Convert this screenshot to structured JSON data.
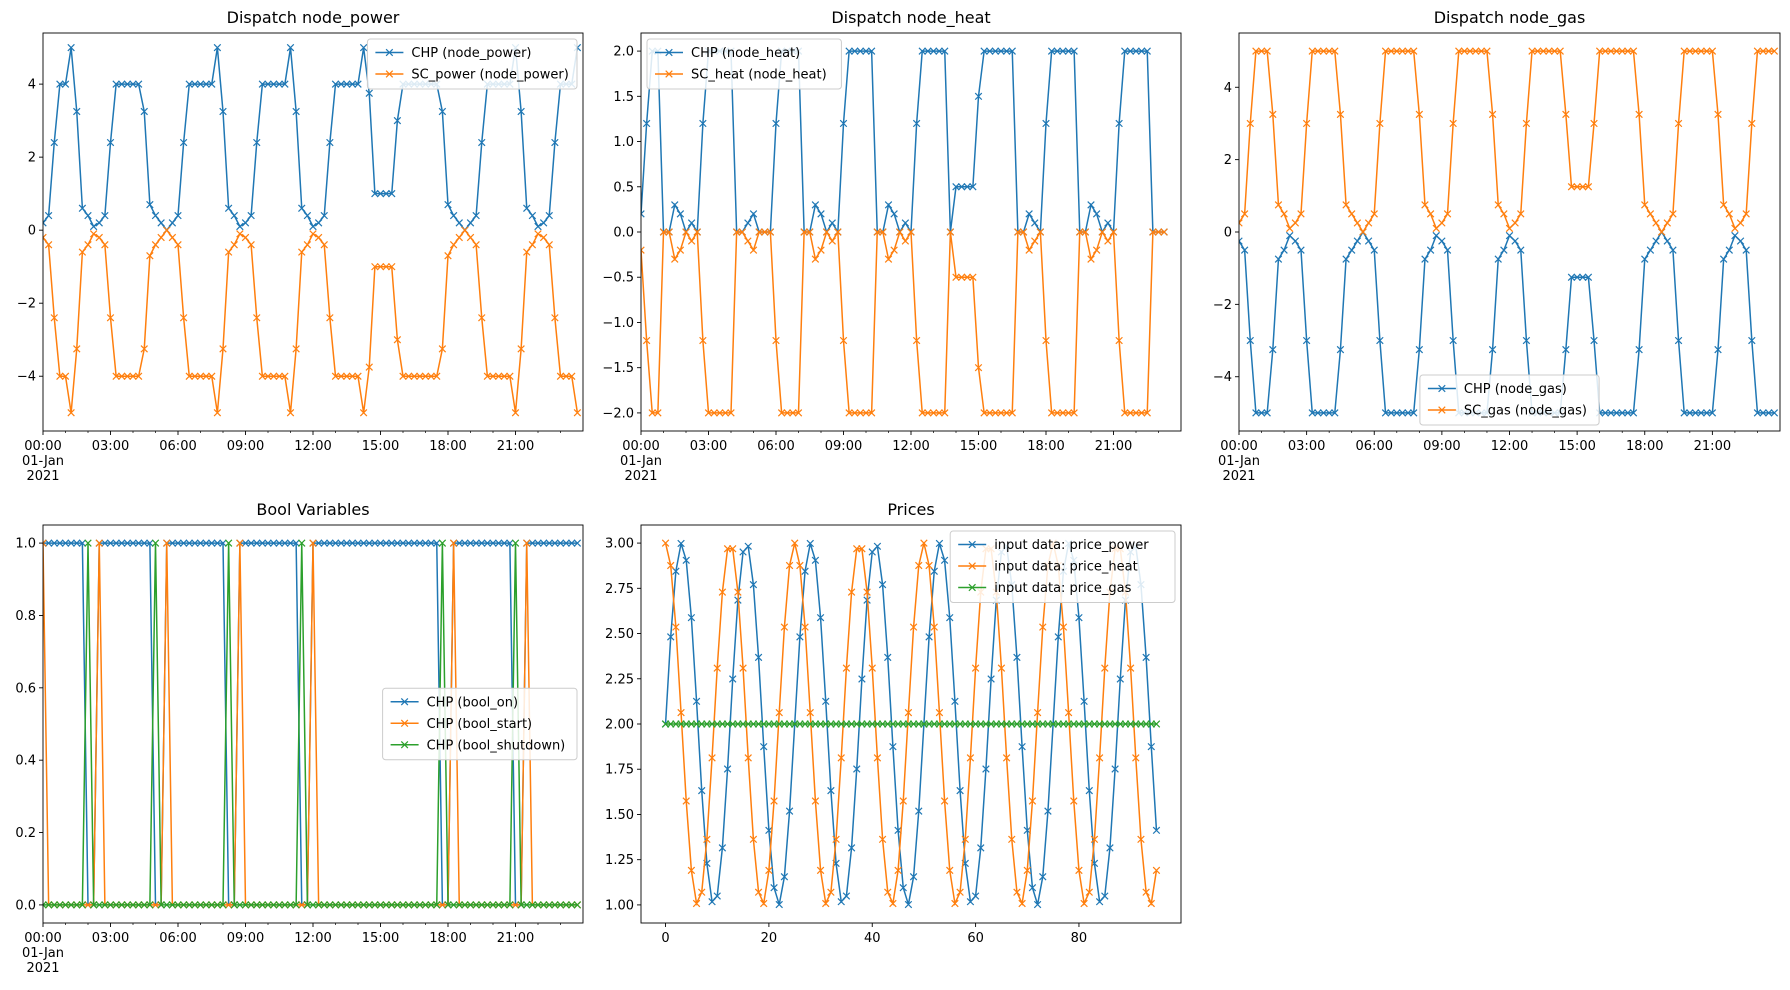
{
  "colors": {
    "c0": "#1f77b4",
    "c1": "#ff7f0e",
    "c2": "#2ca02c"
  },
  "chart_data": [
    {
      "id": "power",
      "type": "line",
      "title": "Dispatch node_power",
      "xlabel": "",
      "ylabel": "",
      "x_kind": "time",
      "n": 96,
      "xlim": [
        0,
        96
      ],
      "ylim": [
        -5.5,
        5.4
      ],
      "yticks": [
        -4,
        -2,
        0,
        2,
        4
      ],
      "yticklabels": [
        "−4",
        "−2",
        "0",
        "2",
        "4"
      ],
      "xticks": [
        0,
        12,
        24,
        36,
        48,
        60,
        72,
        84
      ],
      "xticklabels": [
        "00:00",
        "03:00",
        "06:00",
        "09:00",
        "12:00",
        "15:00",
        "18:00",
        "21:00"
      ],
      "date_line1": "01-Jan",
      "date_line2": "2021",
      "legend_loc": "upper right",
      "series": [
        {
          "name": "CHP (node_power)",
          "color": "c0",
          "values": [
            0.2,
            0.4,
            2.4,
            4,
            4,
            5,
            3.25,
            0.6,
            0.4,
            0.1,
            0.2,
            0.4,
            2.4,
            4,
            4,
            4,
            4,
            4,
            3.25,
            0.7,
            0.4,
            0.2,
            0,
            0.2,
            0.4,
            2.4,
            4,
            4,
            4,
            4,
            4,
            5,
            3.25,
            0.6,
            0.4,
            0.1,
            0.2,
            0.4,
            2.4,
            4,
            4,
            4,
            4,
            4,
            5,
            3.25,
            0.6,
            0.4,
            0.1,
            0.2,
            0.4,
            2.4,
            4,
            4,
            4,
            4,
            4,
            5,
            3.75,
            1,
            1,
            1,
            1,
            3,
            4,
            4,
            4,
            4,
            4,
            4,
            4,
            3.25,
            0.7,
            0.4,
            0.2,
            0,
            0.2,
            0.4,
            2.4,
            4,
            4,
            4,
            4,
            4,
            5,
            3.25,
            0.6,
            0.4,
            0.1,
            0.2,
            0.4,
            2.4,
            4,
            4,
            4,
            5
          ]
        },
        {
          "name": "SC_power (node_power)",
          "color": "c1",
          "values": [
            -0.2,
            -0.4,
            -2.4,
            -4,
            -4,
            -5,
            -3.25,
            -0.6,
            -0.4,
            -0.1,
            -0.2,
            -0.4,
            -2.4,
            -4,
            -4,
            -4,
            -4,
            -4,
            -3.25,
            -0.7,
            -0.4,
            -0.2,
            0,
            -0.2,
            -0.4,
            -2.4,
            -4,
            -4,
            -4,
            -4,
            -4,
            -5,
            -3.25,
            -0.6,
            -0.4,
            -0.1,
            -0.2,
            -0.4,
            -2.4,
            -4,
            -4,
            -4,
            -4,
            -4,
            -5,
            -3.25,
            -0.6,
            -0.4,
            -0.1,
            -0.2,
            -0.4,
            -2.4,
            -4,
            -4,
            -4,
            -4,
            -4,
            -5,
            -3.75,
            -1,
            -1,
            -1,
            -1,
            -3,
            -4,
            -4,
            -4,
            -4,
            -4,
            -4,
            -4,
            -3.25,
            -0.7,
            -0.4,
            -0.2,
            0,
            -0.2,
            -0.4,
            -2.4,
            -4,
            -4,
            -4,
            -4,
            -4,
            -5,
            -3.25,
            -0.6,
            -0.4,
            -0.1,
            -0.2,
            -0.4,
            -2.4,
            -4,
            -4,
            -4,
            -5
          ]
        }
      ]
    },
    {
      "id": "heat",
      "type": "line",
      "title": "Dispatch node_heat",
      "xlabel": "",
      "ylabel": "",
      "x_kind": "time",
      "n": 96,
      "xlim": [
        0,
        96
      ],
      "ylim": [
        -2.2,
        2.2
      ],
      "yticks": [
        -2.0,
        -1.5,
        -1.0,
        -0.5,
        0.0,
        0.5,
        1.0,
        1.5,
        2.0
      ],
      "yticklabels": [
        "−2.0",
        "−1.5",
        "−1.0",
        "−0.5",
        "0.0",
        "0.5",
        "1.0",
        "1.5",
        "2.0"
      ],
      "xticks": [
        0,
        12,
        24,
        36,
        48,
        60,
        72,
        84
      ],
      "xticklabels": [
        "00:00",
        "03:00",
        "06:00",
        "09:00",
        "12:00",
        "15:00",
        "18:00",
        "21:00"
      ],
      "date_line1": "01-Jan",
      "date_line2": "2021",
      "legend_loc": "upper left",
      "series": [
        {
          "name": "CHP (node_heat)",
          "color": "c0",
          "values": [
            0.2,
            1.2,
            2,
            2,
            0,
            0,
            0.3,
            0.2,
            0,
            0.1,
            0,
            1.2,
            2,
            2,
            2,
            2,
            2,
            0,
            0,
            0.1,
            0.2,
            0,
            0,
            0,
            1.2,
            2,
            2,
            2,
            2,
            0,
            0,
            0.3,
            0.2,
            0,
            0.1,
            0,
            1.2,
            2,
            2,
            2,
            2,
            2,
            0,
            0,
            0.3,
            0.2,
            0,
            0.1,
            0,
            1.2,
            2,
            2,
            2,
            2,
            2,
            0,
            0.5,
            0.5,
            0.5,
            0.5,
            1.5,
            2,
            2,
            2,
            2,
            2,
            2,
            0,
            0,
            0.2,
            0.1,
            0,
            1.2,
            2,
            2,
            2,
            2,
            2,
            0,
            0,
            0.3,
            0.2,
            0,
            0.1,
            0,
            1.2,
            2,
            2,
            2,
            2,
            2,
            0,
            0,
            0
          ]
        },
        {
          "name": "SC_heat (node_heat)",
          "color": "c1",
          "values": [
            -0.2,
            -1.2,
            -2,
            -2,
            0,
            0,
            -0.3,
            -0.2,
            0,
            -0.1,
            0,
            -1.2,
            -2,
            -2,
            -2,
            -2,
            -2,
            0,
            0,
            -0.1,
            -0.2,
            0,
            0,
            0,
            -1.2,
            -2,
            -2,
            -2,
            -2,
            0,
            0,
            -0.3,
            -0.2,
            0,
            -0.1,
            0,
            -1.2,
            -2,
            -2,
            -2,
            -2,
            -2,
            0,
            0,
            -0.3,
            -0.2,
            0,
            -0.1,
            0,
            -1.2,
            -2,
            -2,
            -2,
            -2,
            -2,
            0,
            -0.5,
            -0.5,
            -0.5,
            -0.5,
            -1.5,
            -2,
            -2,
            -2,
            -2,
            -2,
            -2,
            0,
            0,
            -0.2,
            -0.1,
            0,
            -1.2,
            -2,
            -2,
            -2,
            -2,
            -2,
            0,
            0,
            -0.3,
            -0.2,
            0,
            -0.1,
            0,
            -1.2,
            -2,
            -2,
            -2,
            -2,
            -2,
            0,
            0,
            0
          ]
        }
      ]
    },
    {
      "id": "gas",
      "type": "line",
      "title": "Dispatch node_gas",
      "xlabel": "",
      "ylabel": "",
      "x_kind": "time",
      "n": 96,
      "xlim": [
        0,
        96
      ],
      "ylim": [
        -5.5,
        5.5
      ],
      "yticks": [
        -4,
        -2,
        0,
        2,
        4
      ],
      "yticklabels": [
        "−4",
        "−2",
        "0",
        "2",
        "4"
      ],
      "xticks": [
        0,
        12,
        24,
        36,
        48,
        60,
        72,
        84
      ],
      "xticklabels": [
        "00:00",
        "03:00",
        "06:00",
        "09:00",
        "12:00",
        "15:00",
        "18:00",
        "21:00"
      ],
      "date_line1": "01-Jan",
      "date_line2": "2021",
      "legend_loc": "lower center",
      "series": [
        {
          "name": "CHP (node_gas)",
          "color": "c0",
          "values": [
            -0.25,
            -0.5,
            -3,
            -5,
            -5,
            -5,
            -3.25,
            -0.75,
            -0.5,
            -0.1,
            -0.25,
            -0.5,
            -3,
            -5,
            -5,
            -5,
            -5,
            -5,
            -3.25,
            -0.75,
            -0.5,
            -0.25,
            0,
            -0.25,
            -0.5,
            -3,
            -5,
            -5,
            -5,
            -5,
            -5,
            -5,
            -3.25,
            -0.75,
            -0.5,
            -0.1,
            -0.25,
            -0.5,
            -3,
            -5,
            -5,
            -5,
            -5,
            -5,
            -5,
            -3.25,
            -0.75,
            -0.5,
            -0.1,
            -0.25,
            -0.5,
            -3,
            -5,
            -5,
            -5,
            -5,
            -5,
            -5,
            -3.25,
            -1.25,
            -1.25,
            -1.25,
            -1.25,
            -3,
            -5,
            -5,
            -5,
            -5,
            -5,
            -5,
            -5,
            -3.25,
            -0.75,
            -0.5,
            -0.25,
            0,
            -0.25,
            -0.5,
            -3,
            -5,
            -5,
            -5,
            -5,
            -5,
            -5,
            -3.25,
            -0.75,
            -0.5,
            -0.1,
            -0.25,
            -0.5,
            -3,
            -5,
            -5,
            -5,
            -5
          ]
        },
        {
          "name": "SC_gas (node_gas)",
          "color": "c1",
          "values": [
            0.25,
            0.5,
            3,
            5,
            5,
            5,
            3.25,
            0.75,
            0.5,
            0.1,
            0.25,
            0.5,
            3,
            5,
            5,
            5,
            5,
            5,
            3.25,
            0.75,
            0.5,
            0.25,
            0,
            0.25,
            0.5,
            3,
            5,
            5,
            5,
            5,
            5,
            5,
            3.25,
            0.75,
            0.5,
            0.1,
            0.25,
            0.5,
            3,
            5,
            5,
            5,
            5,
            5,
            5,
            3.25,
            0.75,
            0.5,
            0.1,
            0.25,
            0.5,
            3,
            5,
            5,
            5,
            5,
            5,
            5,
            3.25,
            1.25,
            1.25,
            1.25,
            1.25,
            3,
            5,
            5,
            5,
            5,
            5,
            5,
            5,
            3.25,
            0.75,
            0.5,
            0.25,
            0,
            0.25,
            0.5,
            3,
            5,
            5,
            5,
            5,
            5,
            5,
            3.25,
            0.75,
            0.5,
            0.1,
            0.25,
            0.5,
            3,
            5,
            5,
            5,
            5
          ]
        }
      ]
    },
    {
      "id": "bool",
      "type": "line",
      "title": "Bool Variables",
      "xlabel": "",
      "ylabel": "",
      "x_kind": "time",
      "n": 96,
      "xlim": [
        0,
        96
      ],
      "ylim": [
        -0.05,
        1.05
      ],
      "yticks": [
        0.0,
        0.2,
        0.4,
        0.6,
        0.8,
        1.0
      ],
      "yticklabels": [
        "0.0",
        "0.2",
        "0.4",
        "0.6",
        "0.8",
        "1.0"
      ],
      "xticks": [
        0,
        12,
        24,
        36,
        48,
        60,
        72,
        84
      ],
      "xticklabels": [
        "00:00",
        "03:00",
        "06:00",
        "09:00",
        "12:00",
        "15:00",
        "18:00",
        "21:00"
      ],
      "date_line1": "01-Jan",
      "date_line2": "2021",
      "legend_loc": "center right",
      "series": [
        {
          "name": "CHP (bool_on)",
          "color": "c0",
          "values": [
            1,
            1,
            1,
            1,
            1,
            1,
            1,
            1,
            0,
            0,
            1,
            1,
            1,
            1,
            1,
            1,
            1,
            1,
            1,
            1,
            0,
            0,
            1,
            1,
            1,
            1,
            1,
            1,
            1,
            1,
            1,
            1,
            1,
            0,
            0,
            1,
            1,
            1,
            1,
            1,
            1,
            1,
            1,
            1,
            1,
            1,
            0,
            0,
            1,
            1,
            1,
            1,
            1,
            1,
            1,
            1,
            1,
            1,
            1,
            1,
            1,
            1,
            1,
            1,
            1,
            1,
            1,
            1,
            1,
            1,
            1,
            0,
            0,
            1,
            1,
            1,
            1,
            1,
            1,
            1,
            1,
            1,
            1,
            1,
            0,
            0,
            1,
            1,
            1,
            1,
            1,
            1,
            1,
            1,
            1,
            1
          ]
        },
        {
          "name": "CHP (bool_start)",
          "color": "c1",
          "values": [
            1,
            0,
            0,
            0,
            0,
            0,
            0,
            0,
            0,
            0,
            1,
            0,
            0,
            0,
            0,
            0,
            0,
            0,
            0,
            0,
            0,
            0,
            1,
            0,
            0,
            0,
            0,
            0,
            0,
            0,
            0,
            0,
            0,
            0,
            0,
            1,
            0,
            0,
            0,
            0,
            0,
            0,
            0,
            0,
            0,
            0,
            0,
            0,
            1,
            0,
            0,
            0,
            0,
            0,
            0,
            0,
            0,
            0,
            0,
            0,
            0,
            0,
            0,
            0,
            0,
            0,
            0,
            0,
            0,
            0,
            0,
            0,
            0,
            1,
            0,
            0,
            0,
            0,
            0,
            0,
            0,
            0,
            0,
            0,
            0,
            0,
            1,
            0,
            0,
            0,
            0,
            0,
            0,
            0,
            0,
            0
          ]
        },
        {
          "name": "CHP (bool_shutdown)",
          "color": "c2",
          "values": [
            0,
            0,
            0,
            0,
            0,
            0,
            0,
            0,
            1,
            0,
            0,
            0,
            0,
            0,
            0,
            0,
            0,
            0,
            0,
            0,
            1,
            0,
            0,
            0,
            0,
            0,
            0,
            0,
            0,
            0,
            0,
            0,
            0,
            1,
            0,
            0,
            0,
            0,
            0,
            0,
            0,
            0,
            0,
            0,
            0,
            0,
            1,
            0,
            0,
            0,
            0,
            0,
            0,
            0,
            0,
            0,
            0,
            0,
            0,
            0,
            0,
            0,
            0,
            0,
            0,
            0,
            0,
            0,
            0,
            0,
            0,
            1,
            0,
            0,
            0,
            0,
            0,
            0,
            0,
            0,
            0,
            0,
            0,
            0,
            1,
            0,
            0,
            0,
            0,
            0,
            0,
            0,
            0,
            0,
            0,
            0
          ]
        }
      ]
    },
    {
      "id": "prices",
      "type": "line",
      "title": "Prices",
      "xlabel": "",
      "ylabel": "",
      "x_kind": "index",
      "n": 96,
      "xlim": [
        -4.75,
        99.75
      ],
      "ylim": [
        0.9,
        3.1
      ],
      "yticks": [
        1.0,
        1.25,
        1.5,
        1.75,
        2.0,
        2.25,
        2.5,
        2.75,
        3.0
      ],
      "yticklabels": [
        "1.00",
        "1.25",
        "1.50",
        "1.75",
        "2.00",
        "2.25",
        "2.50",
        "2.75",
        "3.00"
      ],
      "xticks": [
        0,
        20,
        40,
        60,
        80
      ],
      "xticklabels": [
        "0",
        "20",
        "40",
        "60",
        "80"
      ],
      "legend_loc": "upper right",
      "series": [
        {
          "name": "input data: price_power",
          "color": "c0",
          "gen": {
            "kind": "sin",
            "offset": 2,
            "amp": 1,
            "period": 12.5,
            "phase": 0
          }
        },
        {
          "name": "input data: price_heat",
          "color": "c1",
          "gen": {
            "kind": "cos",
            "offset": 2,
            "amp": 1,
            "period": 12.5,
            "phase": 0
          }
        },
        {
          "name": "input data: price_gas",
          "color": "c2",
          "gen": {
            "kind": "const",
            "offset": 2
          }
        }
      ]
    }
  ]
}
